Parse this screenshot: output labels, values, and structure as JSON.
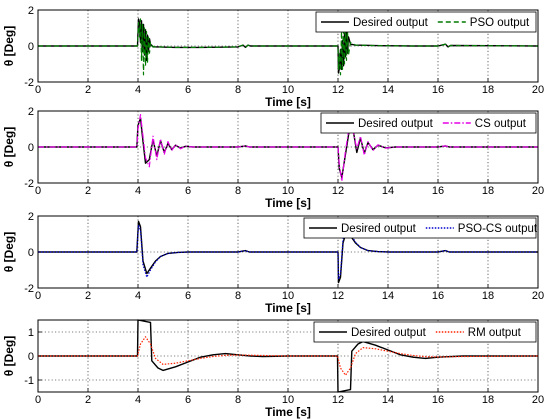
{
  "chart_data": [
    {
      "type": "line",
      "xlabel": "Time [s]",
      "ylabel": "θ [Deg]",
      "xlim": [
        0,
        20
      ],
      "ylim": [
        -2,
        2
      ],
      "xticks": [
        "0",
        "2",
        "4",
        "6",
        "8",
        "10",
        "12",
        "14",
        "16",
        "18",
        "20"
      ],
      "yticks": [
        "-2",
        "0",
        "2"
      ],
      "grid": true,
      "legend_position": "top-right",
      "series": [
        {
          "name": "Desired output",
          "color": "#000000",
          "style": "solid",
          "x": [
            0,
            3.98,
            4.02,
            4.06,
            4.1,
            4.14,
            4.18,
            4.22,
            4.26,
            4.3,
            4.34,
            4.38,
            4.42,
            4.46,
            4.5,
            4.6,
            4.8,
            5.5,
            6.5,
            8.0,
            8.2,
            8.3,
            8.4,
            8.5,
            12.0,
            12.02,
            12.06,
            12.1,
            12.14,
            12.18,
            12.22,
            12.26,
            12.3,
            12.34,
            12.38,
            12.42,
            12.5,
            12.7,
            13.5,
            15.0,
            16.0,
            16.3,
            16.4,
            16.5,
            20
          ],
          "y": [
            0,
            0,
            1.5,
            1.3,
            0.2,
            1.4,
            -0.3,
            1.2,
            -0.5,
            0.9,
            -0.8,
            0.6,
            -0.3,
            0.4,
            0.1,
            -0.05,
            -0.05,
            -0.08,
            -0.08,
            -0.05,
            0.05,
            -0.08,
            0.05,
            0,
            0,
            -1.5,
            -1.2,
            -0.2,
            -1.3,
            0.3,
            -1.1,
            0.7,
            -0.6,
            0.8,
            -0.4,
            0.5,
            0.1,
            0.05,
            0.02,
            0,
            0,
            0.1,
            -0.05,
            0.03,
            0
          ]
        },
        {
          "name": "PSO output",
          "color": "#007a00",
          "style": "dashed",
          "x": [
            0,
            3.98,
            4.02,
            4.06,
            4.1,
            4.14,
            4.18,
            4.22,
            4.26,
            4.3,
            4.34,
            4.38,
            4.42,
            4.46,
            4.5,
            4.6,
            4.8,
            5.5,
            6.5,
            8.0,
            8.2,
            8.3,
            8.4,
            8.5,
            12.0,
            12.02,
            12.06,
            12.1,
            12.14,
            12.18,
            12.22,
            12.26,
            12.3,
            12.34,
            12.38,
            12.42,
            12.5,
            12.7,
            13.5,
            15.0,
            16.0,
            16.3,
            16.4,
            16.5,
            20
          ],
          "y": [
            0,
            0,
            1.3,
            0.5,
            1.5,
            -0.8,
            1.2,
            -1.6,
            1.0,
            -1.1,
            0.8,
            -0.9,
            0.5,
            -0.4,
            0.2,
            -0.05,
            -0.05,
            -0.08,
            -0.08,
            -0.05,
            0.05,
            -0.08,
            0.05,
            0,
            0,
            -1.3,
            -0.4,
            -1.6,
            0.8,
            -1.3,
            1.5,
            -1.0,
            1.1,
            -0.8,
            0.8,
            -0.5,
            0.2,
            0.05,
            0.02,
            0,
            0,
            0.1,
            -0.05,
            0.03,
            0
          ]
        }
      ]
    },
    {
      "type": "line",
      "xlabel": "Time [s]",
      "ylabel": "θ [Deg]",
      "xlim": [
        0,
        20
      ],
      "ylim": [
        -2,
        2
      ],
      "xticks": [
        "0",
        "2",
        "4",
        "6",
        "8",
        "10",
        "12",
        "14",
        "16",
        "18",
        "20"
      ],
      "yticks": [
        "-2",
        "0",
        "2"
      ],
      "grid": true,
      "legend_position": "top-right",
      "series": [
        {
          "name": "Desired output",
          "color": "#000000",
          "style": "solid",
          "x": [
            0,
            3.95,
            4.0,
            4.1,
            4.2,
            4.3,
            4.45,
            4.6,
            4.75,
            4.9,
            5.05,
            5.2,
            5.35,
            5.5,
            5.7,
            5.9,
            6.2,
            6.6,
            8.0,
            8.3,
            8.45,
            12.0,
            12.05,
            12.15,
            12.3,
            12.45,
            12.6,
            12.75,
            12.9,
            13.05,
            13.2,
            13.4,
            13.6,
            13.9,
            14.3,
            16.0,
            16.3,
            16.45,
            20
          ],
          "y": [
            0,
            0,
            1.2,
            1.6,
            0.3,
            -0.9,
            -0.7,
            0.4,
            -0.5,
            0.35,
            -0.3,
            0.2,
            -0.15,
            0.1,
            -0.06,
            0.04,
            0,
            0,
            0,
            0.06,
            0,
            0,
            -1.2,
            -1.7,
            -0.4,
            0.9,
            1.0,
            -0.3,
            0.5,
            -0.35,
            0.25,
            -0.15,
            0.1,
            -0.05,
            0,
            0,
            0.06,
            0,
            0
          ]
        },
        {
          "name": "CS output",
          "color": "#e600e6",
          "style": "dashdot",
          "x": [
            0,
            3.95,
            4.0,
            4.1,
            4.2,
            4.3,
            4.45,
            4.6,
            4.75,
            4.9,
            5.05,
            5.2,
            5.35,
            5.5,
            5.7,
            5.9,
            6.2,
            6.6,
            8.0,
            8.3,
            8.45,
            12.0,
            12.05,
            12.15,
            12.3,
            12.45,
            12.6,
            12.75,
            12.9,
            13.05,
            13.2,
            13.4,
            13.6,
            13.9,
            14.3,
            16.0,
            16.3,
            16.45,
            20
          ],
          "y": [
            0,
            0,
            1.0,
            1.8,
            0.6,
            -0.6,
            -1.1,
            0.6,
            -0.7,
            0.45,
            -0.4,
            0.3,
            -0.2,
            0.14,
            -0.1,
            0.05,
            0,
            0,
            0,
            0.06,
            0,
            0,
            -1.0,
            -1.9,
            -0.2,
            1.1,
            0.9,
            -0.1,
            0.6,
            -0.45,
            0.3,
            -0.2,
            0.12,
            -0.06,
            0,
            0,
            0.06,
            0,
            0
          ]
        }
      ]
    },
    {
      "type": "line",
      "xlabel": "Time [s]",
      "ylabel": "θ [Deg]",
      "xlim": [
        0,
        20
      ],
      "ylim": [
        -2,
        2
      ],
      "xticks": [
        "0",
        "2",
        "4",
        "6",
        "8",
        "10",
        "12",
        "14",
        "16",
        "18",
        "20"
      ],
      "yticks": [
        "-2",
        "0",
        "2"
      ],
      "grid": true,
      "legend_position": "top-right",
      "series": [
        {
          "name": "Desired output",
          "color": "#000000",
          "style": "solid",
          "x": [
            0,
            3.95,
            4.02,
            4.1,
            4.2,
            4.35,
            4.5,
            4.7,
            4.9,
            5.2,
            5.6,
            6.0,
            8.0,
            8.3,
            8.45,
            12.0,
            12.02,
            12.1,
            12.2,
            12.35,
            12.5,
            12.7,
            12.9,
            13.2,
            13.6,
            14.0,
            16.0,
            16.3,
            16.45,
            20
          ],
          "y": [
            0,
            0,
            1.7,
            1.4,
            -0.5,
            -1.2,
            -0.9,
            -0.5,
            -0.25,
            -0.08,
            -0.02,
            0,
            0,
            0.08,
            0,
            0,
            -1.7,
            -1.4,
            0.5,
            1.2,
            0.9,
            0.5,
            0.25,
            0.08,
            0.02,
            0,
            0,
            0.08,
            0,
            0
          ]
        },
        {
          "name": "PSO-CS output",
          "color": "#0000cc",
          "style": "dotted",
          "x": [
            0,
            3.95,
            4.02,
            4.1,
            4.2,
            4.35,
            4.5,
            4.7,
            4.9,
            5.2,
            5.6,
            6.0,
            8.0,
            8.3,
            8.45,
            12.0,
            12.02,
            12.1,
            12.2,
            12.35,
            12.5,
            12.7,
            12.9,
            13.2,
            13.6,
            14.0,
            16.0,
            16.3,
            16.45,
            20
          ],
          "y": [
            0,
            0,
            1.5,
            1.2,
            -0.7,
            -1.4,
            -1.0,
            -0.55,
            -0.25,
            -0.08,
            -0.02,
            0,
            0,
            0.08,
            0,
            0,
            -1.5,
            -1.2,
            0.7,
            1.4,
            1.0,
            0.55,
            0.25,
            0.08,
            0.02,
            0,
            0,
            0.08,
            0,
            0
          ]
        }
      ]
    },
    {
      "type": "line",
      "xlabel": "Time [s]",
      "ylabel": "θ [Deg]",
      "xlim": [
        0,
        20
      ],
      "ylim": [
        -1.5,
        1.5
      ],
      "xticks": [
        "0",
        "2",
        "4",
        "6",
        "8",
        "10",
        "12",
        "14",
        "16",
        "18",
        "20"
      ],
      "yticks": [
        "-1",
        "0",
        "1"
      ],
      "grid": true,
      "legend_position": "top-right",
      "series": [
        {
          "name": "Desired output",
          "color": "#000000",
          "style": "solid",
          "x": [
            0,
            3.98,
            4.0,
            4.5,
            4.55,
            4.8,
            5.0,
            5.5,
            6.0,
            6.5,
            7.0,
            7.5,
            8.0,
            8.5,
            9.0,
            10.0,
            11.98,
            12.0,
            12.5,
            12.55,
            12.8,
            13.0,
            13.5,
            14.0,
            14.5,
            15.0,
            15.5,
            16.0,
            17.0,
            20
          ],
          "y": [
            0,
            0,
            1.5,
            1.4,
            -0.2,
            -0.5,
            -0.6,
            -0.45,
            -0.25,
            -0.05,
            0.05,
            0.1,
            0.05,
            0.0,
            -0.02,
            0,
            0,
            -1.5,
            -1.4,
            0.2,
            0.5,
            0.6,
            0.45,
            0.25,
            0.05,
            -0.05,
            -0.1,
            -0.05,
            0,
            0
          ]
        },
        {
          "name": "RM output",
          "color": "#ff2200",
          "style": "dotted",
          "x": [
            0,
            3.98,
            4.1,
            4.3,
            4.5,
            4.7,
            5.0,
            5.5,
            6.0,
            6.5,
            7.0,
            7.5,
            8.0,
            9.0,
            10.0,
            11.98,
            12.1,
            12.3,
            12.5,
            12.7,
            13.0,
            13.5,
            14.0,
            14.5,
            15.0,
            15.5,
            16.0,
            17.0,
            20
          ],
          "y": [
            0,
            0,
            0.5,
            0.8,
            0.5,
            -0.1,
            -0.35,
            -0.3,
            -0.2,
            -0.1,
            -0.02,
            0.03,
            0.04,
            0.02,
            0,
            0,
            -0.5,
            -0.8,
            -0.5,
            0.1,
            0.35,
            0.3,
            0.2,
            0.1,
            0.02,
            -0.03,
            -0.04,
            -0.02,
            0
          ]
        }
      ]
    }
  ]
}
